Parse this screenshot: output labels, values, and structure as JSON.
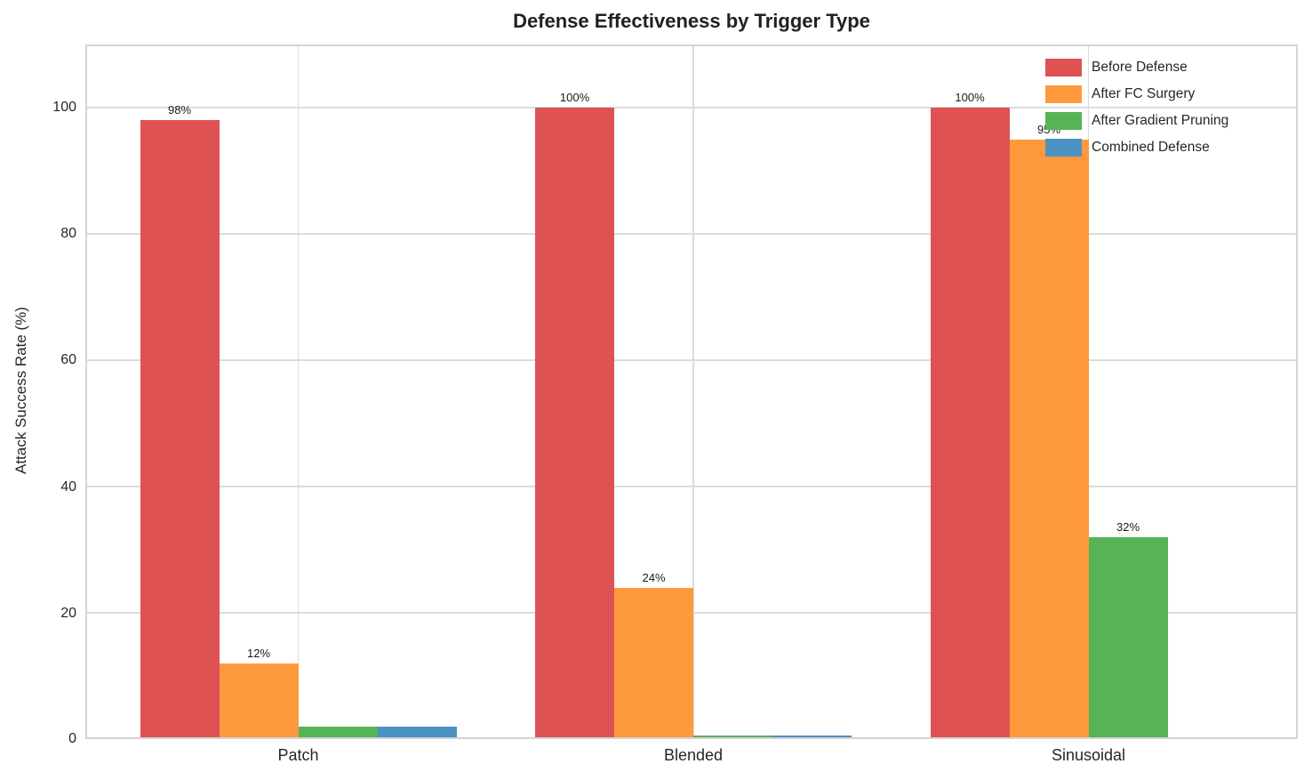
{
  "chart_data": {
    "type": "bar",
    "title": "Defense Effectiveness by Trigger Type",
    "xlabel": "",
    "ylabel": "Attack Success Rate (%)",
    "categories": [
      "Patch",
      "Blended",
      "Sinusoidal"
    ],
    "series": [
      {
        "name": "Before Defense",
        "color": "#de5253",
        "values": [
          98,
          100,
          100
        ],
        "labels": [
          "98%",
          "100%",
          "100%"
        ]
      },
      {
        "name": "After FC Surgery",
        "color": "#ff993e",
        "values": [
          12,
          24,
          95
        ],
        "labels": [
          "12%",
          "24%",
          "95%"
        ]
      },
      {
        "name": "After Gradient Pruning",
        "color": "#56b356",
        "values": [
          2,
          0.5,
          32
        ],
        "labels": [
          "",
          "",
          "32%"
        ]
      },
      {
        "name": "Combined Defense",
        "color": "#4c92c3",
        "values": [
          2,
          0.5,
          0
        ],
        "labels": [
          "",
          "",
          ""
        ]
      }
    ],
    "yticks": [
      "0",
      "20",
      "40",
      "60",
      "80",
      "100"
    ],
    "ylim": [
      0,
      110
    ],
    "grid": true,
    "grid_color": "#dcdcdc",
    "background_color": "#ffffff",
    "legend_position": "upper right"
  }
}
